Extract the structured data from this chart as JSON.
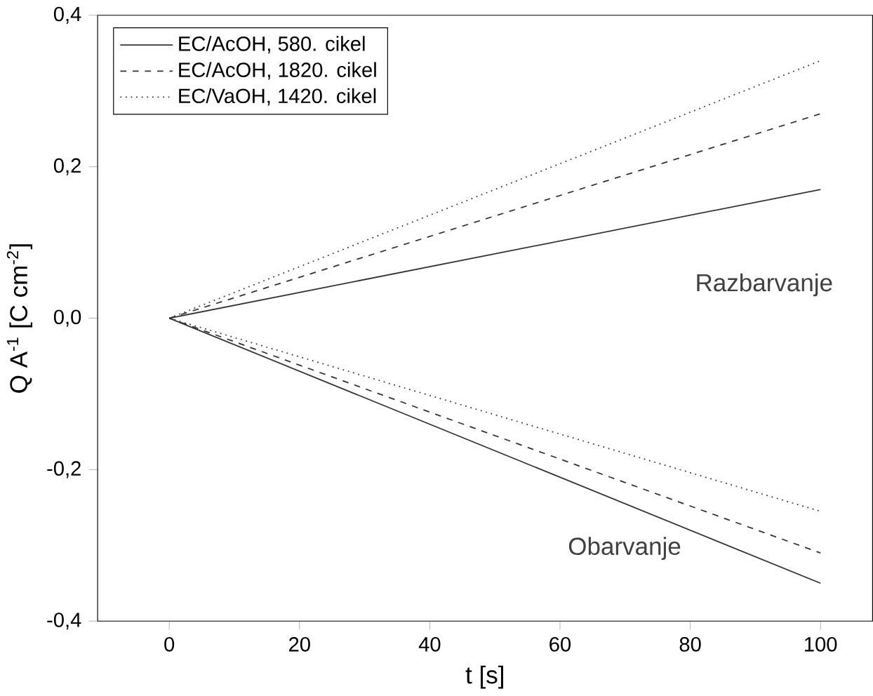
{
  "chart_data": {
    "type": "line",
    "xlabel": "t [s]",
    "ylabel": "Q A$^{-1}$ [C cm$^{-2}$]",
    "xlim": [
      -11,
      108
    ],
    "ylim": [
      -0.4,
      0.4
    ],
    "xticks": [
      0,
      20,
      40,
      60,
      80,
      100
    ],
    "yticks": [
      {
        "value": -0.4,
        "label": "-0,4"
      },
      {
        "value": -0.2,
        "label": "-0,2"
      },
      {
        "value": 0,
        "label": "0,0"
      },
      {
        "value": 0.2,
        "label": "0,2"
      },
      {
        "value": 0.4,
        "label": "0,4"
      }
    ],
    "legend": "top left",
    "marker": "none",
    "x": [
      0,
      100
    ],
    "series": [
      {
        "name": "EC/AcOH,  580. cikel",
        "color": "#333333",
        "line_style": "solid",
        "values": [
          0,
          0.17
        ]
      },
      {
        "name": "EC/AcOH, 1820. cikel",
        "color": "#333333",
        "line_style": "dashed",
        "values": [
          0,
          0.27
        ]
      },
      {
        "name": "EC/VaOH, 1420. cikel",
        "color": "#333333",
        "line_style": "dotted",
        "values": [
          0,
          0.34
        ]
      },
      {
        "color": "#333333",
        "line_style": "solid",
        "values": [
          0,
          -0.35
        ]
      },
      {
        "color": "#333333",
        "line_style": "dashed",
        "values": [
          0,
          -0.31
        ]
      },
      {
        "color": "#333333",
        "line_style": "dotted",
        "values": [
          0,
          -0.255
        ]
      }
    ],
    "annotations": [
      "Razbarvanje",
      "Obarvanje"
    ]
  }
}
